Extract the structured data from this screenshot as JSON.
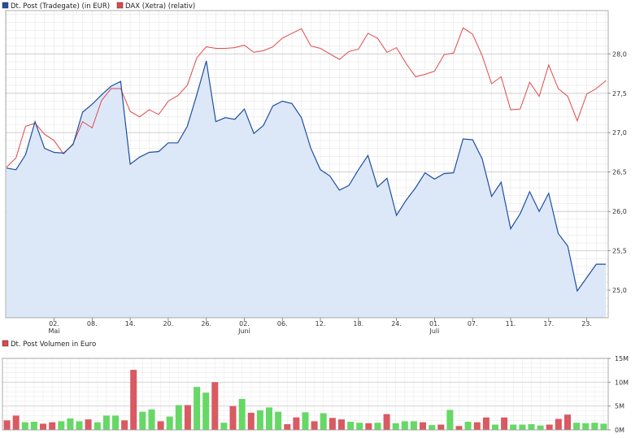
{
  "chart_data": [
    {
      "type": "line",
      "legend": [
        {
          "name": "Dt. Post (Tradegate) (in EUR)",
          "color": "#1f4fa0"
        },
        {
          "name": "DAX (Xetra) (relativ)",
          "color": "#e0484a"
        }
      ],
      "y_ticks": [
        "25,0",
        "25,5",
        "26,0",
        "26,5",
        "27,0",
        "27,5",
        "28,0"
      ],
      "y_tick_values": [
        25.0,
        25.5,
        26.0,
        26.5,
        27.0,
        27.5,
        28.0
      ],
      "ylim": [
        24.65,
        28.55
      ],
      "x_ticks": [
        "02.",
        "08.",
        "14.",
        "20.",
        "26.",
        "02.",
        "06.",
        "12.",
        "18.",
        "24.",
        "01.",
        "07.",
        "11.",
        "17.",
        "23."
      ],
      "x_tick_index": [
        5,
        9,
        13,
        17,
        21,
        25,
        29,
        33,
        37,
        41,
        45,
        49,
        53,
        57,
        61
      ],
      "month_labels": [
        {
          "label": "Mai",
          "index": 5
        },
        {
          "label": "Juni",
          "index": 25
        },
        {
          "label": "Juli",
          "index": 45
        }
      ],
      "grid": true,
      "legend_position": "top-left",
      "series": [
        {
          "name": "Dt. Post (Tradegate) (in EUR)",
          "color": "#1f4fa0",
          "fill": "#dce8f8",
          "values": [
            26.55,
            26.53,
            26.72,
            27.14,
            26.8,
            26.75,
            26.74,
            26.85,
            27.26,
            27.36,
            27.48,
            27.59,
            27.65,
            26.6,
            26.69,
            26.75,
            26.76,
            26.87,
            26.87,
            27.08,
            27.48,
            27.91,
            27.14,
            27.19,
            27.17,
            27.3,
            26.99,
            27.09,
            27.34,
            27.4,
            27.37,
            27.19,
            26.8,
            26.53,
            26.45,
            26.27,
            26.33,
            26.53,
            26.71,
            26.31,
            26.42,
            25.95,
            26.14,
            26.3,
            26.49,
            26.41,
            26.48,
            26.49,
            26.92,
            26.91,
            26.67,
            26.19,
            26.37,
            25.78,
            25.97,
            26.25,
            26.0,
            26.23,
            25.72,
            25.56,
            24.99,
            25.16,
            25.33,
            25.33
          ]
        },
        {
          "name": "DAX (Xetra) (relativ)",
          "color": "#e0484a",
          "values": [
            26.56,
            26.68,
            27.08,
            27.12,
            26.98,
            26.9,
            26.73,
            26.86,
            27.14,
            27.06,
            27.41,
            27.56,
            27.56,
            27.27,
            27.2,
            27.29,
            27.23,
            27.4,
            27.47,
            27.6,
            27.95,
            28.09,
            28.07,
            28.07,
            28.08,
            28.11,
            28.02,
            28.04,
            28.09,
            28.2,
            28.26,
            28.32,
            28.1,
            28.07,
            28.0,
            27.93,
            28.03,
            28.06,
            28.26,
            28.2,
            28.02,
            28.08,
            27.88,
            27.71,
            27.74,
            27.78,
            27.99,
            28.01,
            28.33,
            28.25,
            27.98,
            27.62,
            27.71,
            27.29,
            27.3,
            27.64,
            27.46,
            27.86,
            27.56,
            27.46,
            27.15,
            27.49,
            27.56,
            27.66
          ]
        }
      ]
    },
    {
      "type": "bar",
      "legend": [
        {
          "name": "Dt. Post Volumen in Euro",
          "color": "#e0484a"
        }
      ],
      "y_ticks": [
        "0M",
        "5M",
        "10M",
        "15M"
      ],
      "y_tick_values": [
        0,
        5,
        10,
        15
      ],
      "ylim": [
        0,
        15
      ],
      "grid": true,
      "legend_position": "top-left",
      "colors": {
        "up": "#66d866",
        "down": "#d95a62"
      },
      "values": [
        2.0,
        3.0,
        1.6,
        1.7,
        1.3,
        1.6,
        1.8,
        2.4,
        1.8,
        2.2,
        1.6,
        3.0,
        3.0,
        2.0,
        12.6,
        3.8,
        4.3,
        1.8,
        2.8,
        5.2,
        5.2,
        9.0,
        7.8,
        10.0,
        1.5,
        5.0,
        6.5,
        3.6,
        4.1,
        4.7,
        3.8,
        1.2,
        2.6,
        3.7,
        1.8,
        3.5,
        2.5,
        2.2,
        1.7,
        1.5,
        1.4,
        1.5,
        3.3,
        1.4,
        1.8,
        1.8,
        1.6,
        1.0,
        1.1,
        4.2,
        0.8,
        1.7,
        1.6,
        2.6,
        1.1,
        2.6,
        1.1,
        1.1,
        1.2,
        0.9,
        1.1,
        2.3,
        3.2,
        1.5,
        1.4,
        1.5,
        1.3
      ],
      "up": [
        false,
        false,
        true,
        true,
        false,
        false,
        true,
        true,
        true,
        false,
        true,
        true,
        true,
        false,
        false,
        true,
        true,
        false,
        true,
        true,
        false,
        true,
        true,
        false,
        true,
        false,
        true,
        false,
        true,
        true,
        true,
        false,
        false,
        true,
        false,
        true,
        false,
        false,
        true,
        true,
        false,
        true,
        false,
        true,
        true,
        true,
        false,
        true,
        false,
        true,
        false,
        true,
        false,
        false,
        true,
        false,
        true,
        true,
        true,
        true,
        false,
        false,
        false,
        true,
        true,
        true,
        true
      ]
    }
  ]
}
